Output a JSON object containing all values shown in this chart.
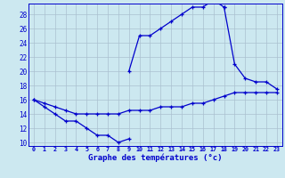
{
  "xlabel": "Graphe des températures (°c)",
  "ylim": [
    9.5,
    29.5
  ],
  "xlim": [
    -0.5,
    23.5
  ],
  "yticks": [
    10,
    12,
    14,
    16,
    18,
    20,
    22,
    24,
    26,
    28
  ],
  "xticks": [
    0,
    1,
    2,
    3,
    4,
    5,
    6,
    7,
    8,
    9,
    10,
    11,
    12,
    13,
    14,
    15,
    16,
    17,
    18,
    19,
    20,
    21,
    22,
    23
  ],
  "bg_color": "#cce8f0",
  "grid_color": "#aac0d0",
  "line_color": "#0000cc",
  "line1_x": [
    0,
    1,
    2,
    3,
    4,
    5,
    6,
    7,
    8,
    9
  ],
  "line1_y": [
    16,
    15,
    14,
    13,
    13,
    12,
    11,
    11,
    10,
    10.5
  ],
  "line2_x": [
    0,
    1,
    2,
    3,
    4,
    5,
    6,
    7,
    8,
    9,
    10,
    11,
    12,
    13,
    14,
    15,
    16,
    17,
    18,
    19,
    20,
    21,
    22,
    23
  ],
  "line2_y": [
    16,
    15.5,
    15,
    14.5,
    14,
    14,
    14,
    14,
    14,
    14.5,
    14.5,
    14.5,
    15,
    15,
    15,
    15.5,
    15.5,
    16,
    16.5,
    17,
    17,
    17,
    17,
    17
  ],
  "line3_x": [
    9,
    10,
    11,
    12,
    13,
    14,
    15,
    16,
    17,
    18
  ],
  "line3_y": [
    20,
    25,
    25,
    26,
    27,
    28,
    29,
    29,
    30,
    29
  ],
  "line4_x": [
    18,
    19,
    20,
    21,
    22,
    23
  ],
  "line4_y": [
    29,
    21,
    19,
    18.5,
    18.5,
    17.5
  ]
}
